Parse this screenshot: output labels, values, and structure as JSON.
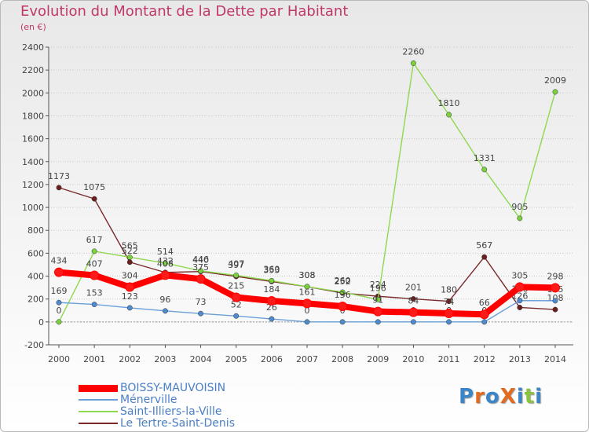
{
  "title": "Evolution du Montant de la Dette par Habitant",
  "subtitle": "(en €)",
  "logo": {
    "text": "ProXiti"
  },
  "chart_data": {
    "type": "line",
    "x": [
      2000,
      2001,
      2002,
      2003,
      2004,
      2005,
      2006,
      2007,
      2008,
      2009,
      2010,
      2011,
      2012,
      2013,
      2014
    ],
    "ylim": [
      -200,
      2400
    ],
    "yticks": [
      -200,
      0,
      200,
      400,
      600,
      800,
      1000,
      1200,
      1400,
      1600,
      1800,
      2000,
      2200,
      2400
    ],
    "grid": "horizontal dotted",
    "legend": "bottom-left",
    "series": [
      {
        "name": "Le Tertre-Saint-Denis",
        "color": "#7a2a2a",
        "marker": "#6b1f1f",
        "values": [
          1173,
          1075,
          522,
          432,
          440,
          397,
          353,
          308,
          252,
          224,
          201,
          180,
          567,
          126,
          108
        ]
      },
      {
        "name": "Saint-Illiers-la-Ville",
        "color": "#8ed94f",
        "marker": "#7cd13f",
        "values": [
          0,
          617,
          565,
          514,
          446,
          407,
          360,
          308,
          260,
          196,
          2260,
          1810,
          1331,
          905,
          2009
        ]
      },
      {
        "name": "Ménerville",
        "color": "#6a9fd8",
        "marker": "#4f8bcd",
        "values": [
          169,
          153,
          123,
          96,
          73,
          52,
          26,
          0,
          0,
          0,
          0,
          0,
          0,
          186,
          185
        ]
      },
      {
        "name": "BOISSY-MAUVOISIN",
        "color": "#ff0000",
        "marker": "#ff1a1a",
        "values": [
          434,
          407,
          304,
          408,
          375,
          215,
          184,
          161,
          136,
          91,
          84,
          74,
          66,
          305,
          298
        ]
      }
    ],
    "legend_order": [
      "BOISSY-MAUVOISIN",
      "Ménerville",
      "Saint-Illiers-la-Ville",
      "Le Tertre-Saint-Denis"
    ]
  }
}
